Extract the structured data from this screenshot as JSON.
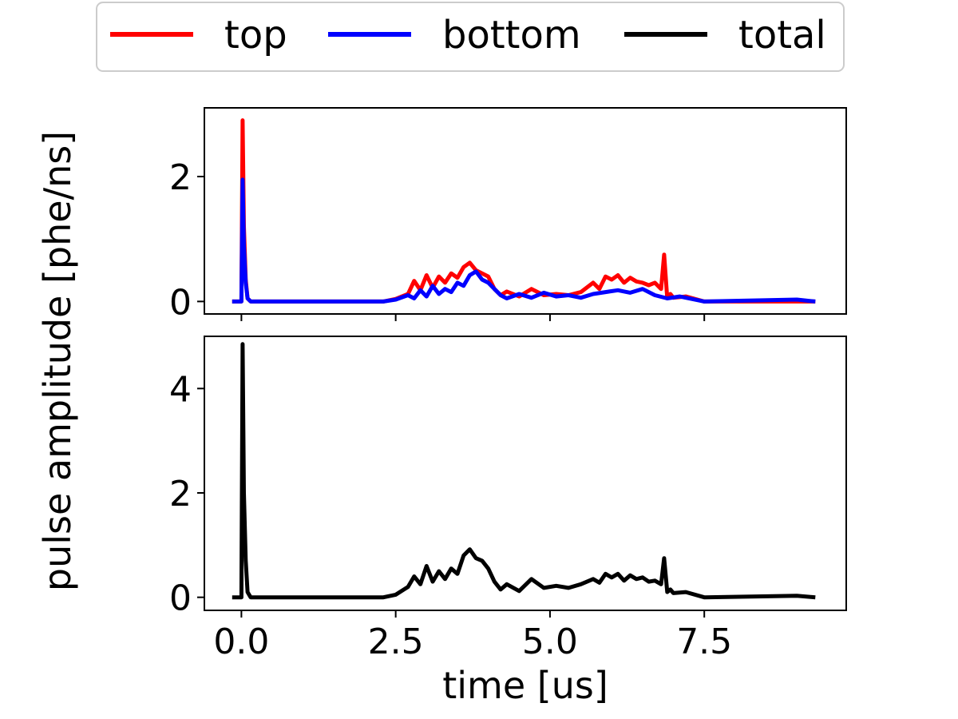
{
  "chart_data": {
    "type": "line",
    "xlabel": "time [us]",
    "ylabel": "pulse amplitude [phe/ns]",
    "legend": {
      "placement": "top-center",
      "entries": [
        {
          "name": "top",
          "color": "#ff0000"
        },
        {
          "name": "bottom",
          "color": "#0000ff"
        },
        {
          "name": "total",
          "color": "#000000"
        }
      ]
    },
    "xlim": [
      -0.6,
      9.8
    ],
    "xticks": [
      0.0,
      2.5,
      5.0,
      7.5
    ],
    "xtick_labels": [
      "0.0",
      "2.5",
      "5.0",
      "7.5"
    ],
    "grid": false,
    "panels": [
      {
        "ylim": [
          -0.2,
          3.1
        ],
        "yticks": [
          0,
          2
        ],
        "ytick_labels": [
          "0",
          "2"
        ],
        "series": [
          {
            "name": "top",
            "color": "#ff0000",
            "x": [
              -0.15,
              0.0,
              0.02,
              0.04,
              0.07,
              0.1,
              0.15,
              0.2,
              1.0,
              2.3,
              2.5,
              2.7,
              2.8,
              2.9,
              3.0,
              3.1,
              3.2,
              3.3,
              3.4,
              3.5,
              3.6,
              3.7,
              3.8,
              3.9,
              4.0,
              4.1,
              4.2,
              4.3,
              4.5,
              4.7,
              4.9,
              5.1,
              5.3,
              5.5,
              5.7,
              5.8,
              5.9,
              6.0,
              6.1,
              6.2,
              6.3,
              6.4,
              6.5,
              6.6,
              6.7,
              6.8,
              6.85,
              6.9,
              6.95,
              7.0,
              7.2,
              7.5,
              9.3
            ],
            "y": [
              0.0,
              0.0,
              2.9,
              1.2,
              0.35,
              0.05,
              0.0,
              0.0,
              0.0,
              0.0,
              0.04,
              0.12,
              0.33,
              0.18,
              0.42,
              0.22,
              0.4,
              0.3,
              0.45,
              0.38,
              0.55,
              0.62,
              0.5,
              0.45,
              0.4,
              0.2,
              0.1,
              0.16,
              0.08,
              0.2,
              0.1,
              0.12,
              0.1,
              0.15,
              0.3,
              0.2,
              0.4,
              0.35,
              0.42,
              0.3,
              0.38,
              0.32,
              0.3,
              0.26,
              0.3,
              0.2,
              0.75,
              0.05,
              0.12,
              0.06,
              0.08,
              0.0,
              0.0
            ]
          },
          {
            "name": "bottom",
            "color": "#0000ff",
            "x": [
              -0.15,
              0.0,
              0.02,
              0.04,
              0.07,
              0.1,
              0.15,
              0.2,
              2.3,
              2.5,
              2.7,
              2.8,
              2.9,
              3.0,
              3.1,
              3.2,
              3.3,
              3.4,
              3.5,
              3.6,
              3.7,
              3.8,
              3.9,
              4.0,
              4.1,
              4.2,
              4.3,
              4.5,
              4.7,
              4.9,
              5.1,
              5.3,
              5.5,
              5.7,
              5.9,
              6.1,
              6.3,
              6.5,
              6.7,
              6.9,
              7.1,
              7.5,
              9.0,
              9.3
            ],
            "y": [
              0.0,
              0.0,
              1.95,
              0.9,
              0.3,
              0.05,
              0.0,
              0.0,
              0.0,
              0.03,
              0.1,
              0.05,
              0.18,
              0.08,
              0.25,
              0.12,
              0.2,
              0.15,
              0.3,
              0.25,
              0.42,
              0.48,
              0.35,
              0.3,
              0.2,
              0.1,
              0.05,
              0.12,
              0.06,
              0.14,
              0.08,
              0.1,
              0.06,
              0.12,
              0.15,
              0.18,
              0.14,
              0.2,
              0.1,
              0.05,
              0.08,
              0.0,
              0.03,
              0.0
            ]
          }
        ]
      },
      {
        "ylim": [
          -0.25,
          5.0
        ],
        "yticks": [
          0,
          2,
          4
        ],
        "ytick_labels": [
          "0",
          "2",
          "4"
        ],
        "series": [
          {
            "name": "total",
            "color": "#000000",
            "x": [
              -0.15,
              0.0,
              0.02,
              0.04,
              0.07,
              0.1,
              0.15,
              0.2,
              1.0,
              2.3,
              2.5,
              2.7,
              2.8,
              2.9,
              3.0,
              3.1,
              3.2,
              3.3,
              3.4,
              3.5,
              3.6,
              3.7,
              3.8,
              3.9,
              4.0,
              4.1,
              4.2,
              4.3,
              4.5,
              4.7,
              4.9,
              5.1,
              5.3,
              5.5,
              5.7,
              5.8,
              5.9,
              6.0,
              6.1,
              6.2,
              6.3,
              6.4,
              6.5,
              6.6,
              6.7,
              6.8,
              6.85,
              6.9,
              6.95,
              7.0,
              7.2,
              7.5,
              9.0,
              9.3
            ],
            "y": [
              0.0,
              0.0,
              4.85,
              2.0,
              0.7,
              0.1,
              0.0,
              0.0,
              0.0,
              0.0,
              0.05,
              0.2,
              0.4,
              0.25,
              0.6,
              0.3,
              0.5,
              0.35,
              0.55,
              0.45,
              0.8,
              0.92,
              0.75,
              0.7,
              0.55,
              0.3,
              0.15,
              0.25,
              0.12,
              0.35,
              0.18,
              0.22,
              0.18,
              0.25,
              0.35,
              0.28,
              0.45,
              0.38,
              0.45,
              0.32,
              0.42,
              0.35,
              0.38,
              0.3,
              0.32,
              0.25,
              0.75,
              0.1,
              0.15,
              0.08,
              0.1,
              0.0,
              0.03,
              0.0
            ]
          }
        ]
      }
    ]
  }
}
